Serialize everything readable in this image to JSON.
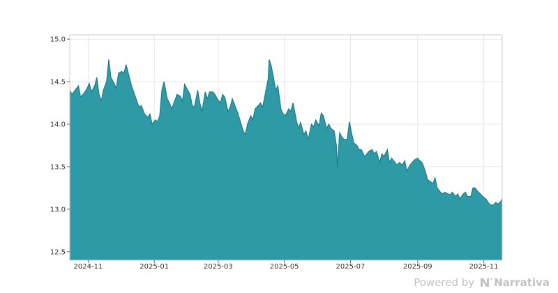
{
  "chart_data": {
    "type": "area",
    "title": "",
    "xlabel": "",
    "ylabel": "",
    "x_range": [
      "2024-10-15",
      "2025-11-18"
    ],
    "ylim": [
      12.4,
      15.05
    ],
    "grid": true,
    "legend": "none",
    "area_color": "#2e9aa6",
    "line_color": "#1a7f8c",
    "y_ticks": [
      {
        "value": 12.5,
        "label": "12.5"
      },
      {
        "value": 13.0,
        "label": "13.0"
      },
      {
        "value": 13.5,
        "label": "13.5"
      },
      {
        "value": 14.0,
        "label": "14.0"
      },
      {
        "value": 14.5,
        "label": "14.5"
      },
      {
        "value": 15.0,
        "label": "15.0"
      }
    ],
    "x_ticks": [
      {
        "value": "2024-11-01",
        "label": "2024-11"
      },
      {
        "value": "2025-01-01",
        "label": "2025-01"
      },
      {
        "value": "2025-03-01",
        "label": "2025-03"
      },
      {
        "value": "2025-05-01",
        "label": "2025-05"
      },
      {
        "value": "2025-07-01",
        "label": "2025-07"
      },
      {
        "value": "2025-09-01",
        "label": "2025-09"
      },
      {
        "value": "2025-11-01",
        "label": "2025-11"
      }
    ],
    "points": [
      [
        "2024-10-15",
        14.4
      ],
      [
        "2024-10-17",
        14.35
      ],
      [
        "2024-10-20",
        14.4
      ],
      [
        "2024-10-23",
        14.45
      ],
      [
        "2024-10-25",
        14.32
      ],
      [
        "2024-10-28",
        14.36
      ],
      [
        "2024-10-31",
        14.42
      ],
      [
        "2024-11-02",
        14.48
      ],
      [
        "2024-11-04",
        14.38
      ],
      [
        "2024-11-07",
        14.45
      ],
      [
        "2024-11-09",
        14.55
      ],
      [
        "2024-11-11",
        14.35
      ],
      [
        "2024-11-13",
        14.27
      ],
      [
        "2024-11-15",
        14.4
      ],
      [
        "2024-11-18",
        14.5
      ],
      [
        "2024-11-20",
        14.76
      ],
      [
        "2024-11-22",
        14.55
      ],
      [
        "2024-11-25",
        14.48
      ],
      [
        "2024-11-27",
        14.42
      ],
      [
        "2024-11-29",
        14.6
      ],
      [
        "2024-12-02",
        14.62
      ],
      [
        "2024-12-04",
        14.6
      ],
      [
        "2024-12-06",
        14.7
      ],
      [
        "2024-12-09",
        14.55
      ],
      [
        "2024-12-11",
        14.45
      ],
      [
        "2024-12-13",
        14.38
      ],
      [
        "2024-12-16",
        14.27
      ],
      [
        "2024-12-18",
        14.2
      ],
      [
        "2024-12-20",
        14.22
      ],
      [
        "2024-12-23",
        14.12
      ],
      [
        "2024-12-26",
        14.08
      ],
      [
        "2024-12-28",
        14.12
      ],
      [
        "2024-12-30",
        14.0
      ],
      [
        "2025-01-02",
        14.05
      ],
      [
        "2025-01-04",
        14.03
      ],
      [
        "2025-01-06",
        14.1
      ],
      [
        "2025-01-08",
        14.4
      ],
      [
        "2025-01-10",
        14.5
      ],
      [
        "2025-01-13",
        14.3
      ],
      [
        "2025-01-15",
        14.25
      ],
      [
        "2025-01-17",
        14.18
      ],
      [
        "2025-01-20",
        14.28
      ],
      [
        "2025-01-22",
        14.35
      ],
      [
        "2025-01-25",
        14.33
      ],
      [
        "2025-01-27",
        14.27
      ],
      [
        "2025-01-29",
        14.47
      ],
      [
        "2025-01-31",
        14.42
      ],
      [
        "2025-02-03",
        14.35
      ],
      [
        "2025-02-05",
        14.22
      ],
      [
        "2025-02-07",
        14.2
      ],
      [
        "2025-02-10",
        14.4
      ],
      [
        "2025-02-12",
        14.25
      ],
      [
        "2025-02-14",
        14.15
      ],
      [
        "2025-02-17",
        14.38
      ],
      [
        "2025-02-19",
        14.3
      ],
      [
        "2025-02-21",
        14.38
      ],
      [
        "2025-02-24",
        14.38
      ],
      [
        "2025-02-26",
        14.35
      ],
      [
        "2025-02-28",
        14.3
      ],
      [
        "2025-03-03",
        14.25
      ],
      [
        "2025-03-05",
        14.35
      ],
      [
        "2025-03-07",
        14.32
      ],
      [
        "2025-03-10",
        14.15
      ],
      [
        "2025-03-12",
        14.2
      ],
      [
        "2025-03-14",
        14.3
      ],
      [
        "2025-03-17",
        14.2
      ],
      [
        "2025-03-19",
        14.13
      ],
      [
        "2025-03-21",
        14.05
      ],
      [
        "2025-03-24",
        13.92
      ],
      [
        "2025-03-26",
        13.88
      ],
      [
        "2025-03-28",
        14.0
      ],
      [
        "2025-03-31",
        14.1
      ],
      [
        "2025-04-02",
        14.05
      ],
      [
        "2025-04-04",
        14.18
      ],
      [
        "2025-04-07",
        14.22
      ],
      [
        "2025-04-09",
        14.25
      ],
      [
        "2025-04-11",
        14.2
      ],
      [
        "2025-04-14",
        14.4
      ],
      [
        "2025-04-16",
        14.53
      ],
      [
        "2025-04-17",
        14.76
      ],
      [
        "2025-04-19",
        14.68
      ],
      [
        "2025-04-21",
        14.55
      ],
      [
        "2025-04-23",
        14.4
      ],
      [
        "2025-04-25",
        14.45
      ],
      [
        "2025-04-28",
        14.17
      ],
      [
        "2025-04-30",
        14.12
      ],
      [
        "2025-05-02",
        14.1
      ],
      [
        "2025-05-05",
        14.18
      ],
      [
        "2025-05-07",
        14.15
      ],
      [
        "2025-05-09",
        14.25
      ],
      [
        "2025-05-12",
        14.05
      ],
      [
        "2025-05-14",
        13.95
      ],
      [
        "2025-05-16",
        14.02
      ],
      [
        "2025-05-19",
        13.88
      ],
      [
        "2025-05-21",
        13.92
      ],
      [
        "2025-05-23",
        13.82
      ],
      [
        "2025-05-26",
        14.0
      ],
      [
        "2025-05-28",
        13.97
      ],
      [
        "2025-05-30",
        14.05
      ],
      [
        "2025-06-02",
        13.98
      ],
      [
        "2025-06-04",
        14.13
      ],
      [
        "2025-06-06",
        14.1
      ],
      [
        "2025-06-09",
        13.95
      ],
      [
        "2025-06-11",
        14.0
      ],
      [
        "2025-06-13",
        13.95
      ],
      [
        "2025-06-16",
        13.92
      ],
      [
        "2025-06-18",
        13.75
      ],
      [
        "2025-06-19",
        13.5
      ],
      [
        "2025-06-21",
        13.9
      ],
      [
        "2025-06-23",
        13.85
      ],
      [
        "2025-06-25",
        13.82
      ],
      [
        "2025-06-28",
        13.82
      ],
      [
        "2025-06-30",
        14.03
      ],
      [
        "2025-07-02",
        13.9
      ],
      [
        "2025-07-04",
        13.78
      ],
      [
        "2025-07-07",
        13.75
      ],
      [
        "2025-07-09",
        13.7
      ],
      [
        "2025-07-11",
        13.7
      ],
      [
        "2025-07-14",
        13.62
      ],
      [
        "2025-07-16",
        13.65
      ],
      [
        "2025-07-18",
        13.68
      ],
      [
        "2025-07-21",
        13.7
      ],
      [
        "2025-07-23",
        13.65
      ],
      [
        "2025-07-25",
        13.68
      ],
      [
        "2025-07-28",
        13.55
      ],
      [
        "2025-07-30",
        13.65
      ],
      [
        "2025-08-01",
        13.62
      ],
      [
        "2025-08-04",
        13.7
      ],
      [
        "2025-08-06",
        13.55
      ],
      [
        "2025-08-08",
        13.6
      ],
      [
        "2025-08-11",
        13.55
      ],
      [
        "2025-08-13",
        13.52
      ],
      [
        "2025-08-15",
        13.55
      ],
      [
        "2025-08-18",
        13.52
      ],
      [
        "2025-08-20",
        13.57
      ],
      [
        "2025-08-22",
        13.45
      ],
      [
        "2025-08-25",
        13.52
      ],
      [
        "2025-08-27",
        13.55
      ],
      [
        "2025-08-29",
        13.58
      ],
      [
        "2025-09-01",
        13.6
      ],
      [
        "2025-09-03",
        13.57
      ],
      [
        "2025-09-05",
        13.55
      ],
      [
        "2025-09-08",
        13.45
      ],
      [
        "2025-09-10",
        13.35
      ],
      [
        "2025-09-12",
        13.33
      ],
      [
        "2025-09-15",
        13.3
      ],
      [
        "2025-09-17",
        13.37
      ],
      [
        "2025-09-19",
        13.25
      ],
      [
        "2025-09-22",
        13.2
      ],
      [
        "2025-09-24",
        13.18
      ],
      [
        "2025-09-26",
        13.2
      ],
      [
        "2025-09-29",
        13.18
      ],
      [
        "2025-10-01",
        13.17
      ],
      [
        "2025-10-03",
        13.2
      ],
      [
        "2025-10-06",
        13.15
      ],
      [
        "2025-10-08",
        13.18
      ],
      [
        "2025-10-10",
        13.12
      ],
      [
        "2025-10-13",
        13.18
      ],
      [
        "2025-10-15",
        13.2
      ],
      [
        "2025-10-17",
        13.15
      ],
      [
        "2025-10-20",
        13.15
      ],
      [
        "2025-10-22",
        13.25
      ],
      [
        "2025-10-24",
        13.25
      ],
      [
        "2025-10-27",
        13.2
      ],
      [
        "2025-10-29",
        13.18
      ],
      [
        "2025-10-31",
        13.15
      ],
      [
        "2025-11-03",
        13.12
      ],
      [
        "2025-11-05",
        13.08
      ],
      [
        "2025-11-07",
        13.05
      ],
      [
        "2025-11-10",
        13.05
      ],
      [
        "2025-11-12",
        13.08
      ],
      [
        "2025-11-14",
        13.06
      ],
      [
        "2025-11-16",
        13.08
      ],
      [
        "2025-11-18",
        13.12
      ]
    ]
  },
  "watermark": {
    "prefix": "Powered by",
    "brand": "Narrativa",
    "logo_icon": "narrativa-n-logo",
    "color": "#c2c2c2"
  }
}
